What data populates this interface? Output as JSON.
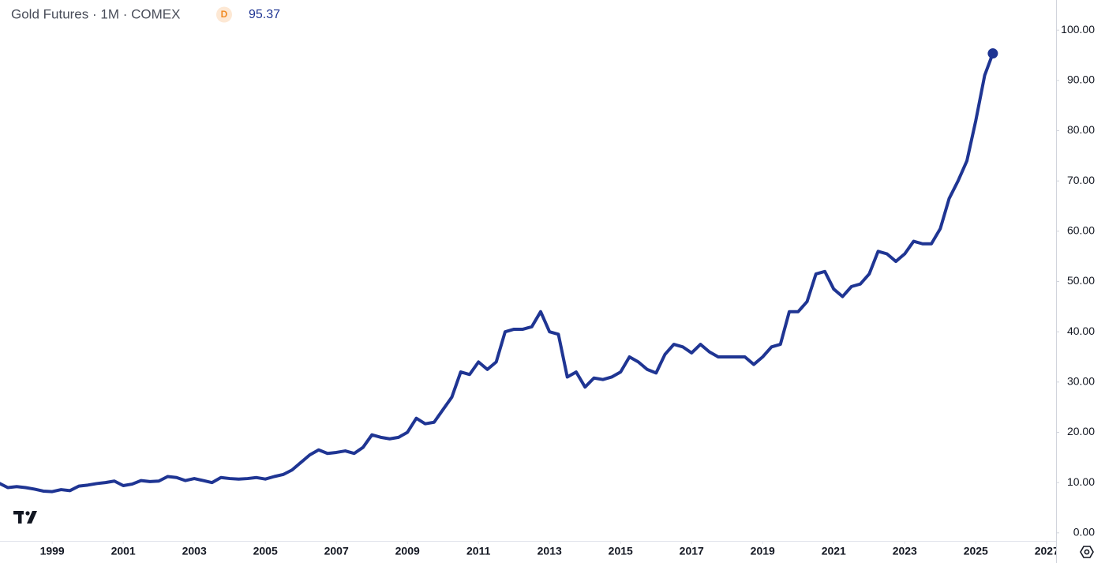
{
  "chart_data": {
    "type": "line",
    "title": "Gold Futures · 1M · COMEX",
    "badge": "D",
    "last_label": "95.37",
    "color": "#1f3593",
    "x": [
      1997.5,
      1997.75,
      1998,
      1998.25,
      1998.5,
      1998.75,
      1999,
      1999.25,
      1999.5,
      1999.75,
      2000,
      2000.25,
      2000.5,
      2000.75,
      2001,
      2001.25,
      2001.5,
      2001.75,
      2002,
      2002.25,
      2002.5,
      2002.75,
      2003,
      2003.25,
      2003.5,
      2003.75,
      2004,
      2004.25,
      2004.5,
      2004.75,
      2005,
      2005.25,
      2005.5,
      2005.75,
      2006,
      2006.25,
      2006.5,
      2006.75,
      2007,
      2007.25,
      2007.5,
      2007.75,
      2008,
      2008.25,
      2008.5,
      2008.75,
      2009,
      2009.25,
      2009.5,
      2009.75,
      2010,
      2010.25,
      2010.5,
      2010.75,
      2011,
      2011.25,
      2011.5,
      2011.75,
      2012,
      2012.25,
      2012.5,
      2012.75,
      2013,
      2013.25,
      2013.5,
      2013.75,
      2014,
      2014.25,
      2014.5,
      2014.75,
      2015,
      2015.25,
      2015.5,
      2015.75,
      2016,
      2016.25,
      2016.5,
      2016.75,
      2017,
      2017.25,
      2017.5,
      2017.75,
      2018,
      2018.25,
      2018.5,
      2018.75,
      2019,
      2019.25,
      2019.5,
      2019.75,
      2020,
      2020.25,
      2020.5,
      2020.75,
      2021,
      2021.25,
      2021.5,
      2021.75,
      2022,
      2022.25,
      2022.5,
      2022.75,
      2023,
      2023.25,
      2023.5,
      2023.75,
      2024,
      2024.25,
      2024.5,
      2024.75,
      2025,
      2025.25,
      2025.48
    ],
    "values": [
      9.9,
      9.0,
      9.2,
      9.0,
      8.7,
      8.3,
      8.2,
      8.6,
      8.4,
      9.3,
      9.5,
      9.8,
      10.0,
      10.3,
      9.4,
      9.7,
      10.4,
      10.2,
      10.3,
      11.2,
      11.0,
      10.4,
      10.8,
      10.4,
      10.0,
      11.0,
      10.8,
      10.7,
      10.8,
      11.0,
      10.7,
      11.2,
      11.6,
      12.5,
      14.0,
      15.5,
      16.5,
      15.8,
      16.0,
      16.3,
      15.8,
      17.0,
      19.5,
      19.0,
      18.7,
      19.0,
      20.0,
      22.8,
      21.7,
      22.0,
      24.5,
      27.0,
      32.0,
      31.5,
      34.0,
      32.5,
      34.0,
      40.0,
      40.5,
      40.5,
      41.0,
      44.0,
      40.0,
      39.5,
      31.0,
      32.0,
      29.0,
      30.8,
      30.5,
      31.0,
      32.0,
      35.0,
      34.0,
      32.5,
      31.8,
      35.5,
      37.5,
      37.0,
      35.8,
      37.5,
      36.0,
      35.0,
      35.0,
      35.0,
      35.0,
      33.5,
      35.0,
      37.0,
      37.5,
      44.0,
      44.0,
      46.0,
      51.5,
      52.0,
      48.5,
      47.0,
      49.0,
      49.5,
      51.5,
      56.0,
      55.5,
      54.0,
      55.5,
      58.0,
      57.5,
      57.5,
      60.5,
      66.5,
      70.0,
      74.0,
      82.0,
      91.0,
      95.37
    ],
    "xlim": [
      1997.53,
      2027.26
    ],
    "xticks": [
      1999,
      2001,
      2003,
      2005,
      2007,
      2009,
      2011,
      2013,
      2015,
      2017,
      2019,
      2021,
      2023,
      2025,
      2027
    ],
    "ylim": [
      -1.6,
      106
    ],
    "yticks": [
      {
        "value": 0,
        "label": "0.00"
      },
      {
        "value": 10,
        "label": "10.00"
      },
      {
        "value": 20,
        "label": "20.00"
      },
      {
        "value": 30,
        "label": "30.00"
      },
      {
        "value": 40,
        "label": "40.00"
      },
      {
        "value": 50,
        "label": "50.00"
      },
      {
        "value": 60,
        "label": "60.00"
      },
      {
        "value": 70,
        "label": "70.00"
      },
      {
        "value": 80,
        "label": "80.00"
      },
      {
        "value": 90,
        "label": "90.00"
      },
      {
        "value": 100,
        "label": "100.00"
      }
    ],
    "grid": false
  }
}
